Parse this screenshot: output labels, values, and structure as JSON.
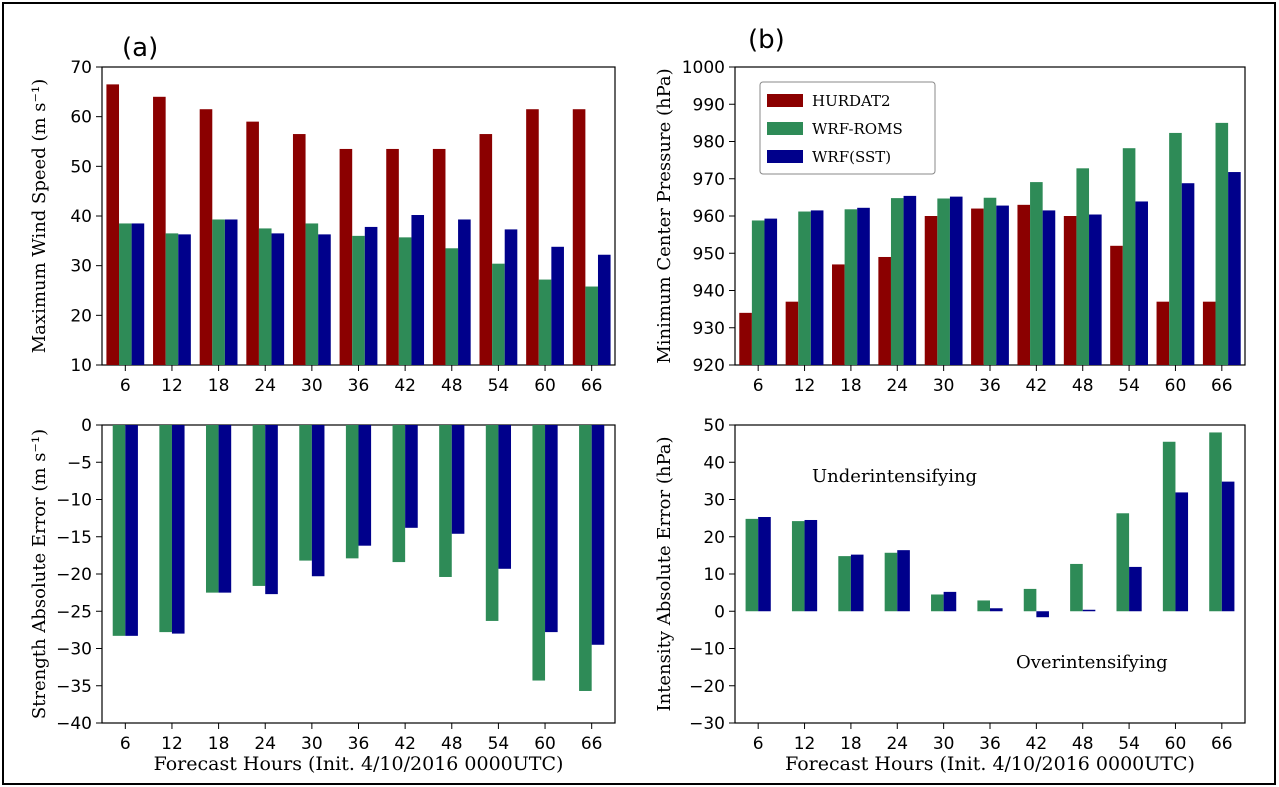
{
  "panel_labels": [
    "(a)",
    "(b)"
  ],
  "legend": [
    {
      "label": "HURDAT2",
      "color": "#8b0000"
    },
    {
      "label": "WRF-ROMS",
      "color": "#2e8b57"
    },
    {
      "label": "WRF(SST)",
      "color": "#00008b"
    }
  ],
  "annotations": {
    "under": "Underintensifying",
    "over": "Overintensifying",
    "color": "#8b0000"
  },
  "chart_data": [
    {
      "type": "bar",
      "panel": "(a) top",
      "categories": [
        "6",
        "12",
        "18",
        "24",
        "30",
        "36",
        "42",
        "48",
        "54",
        "60",
        "66"
      ],
      "ylabel": "Maximum Wind Speed (m s⁻¹)",
      "xlabel": "",
      "ylim": [
        10,
        70
      ],
      "yticks": [
        10,
        20,
        30,
        40,
        50,
        60,
        70
      ],
      "series": [
        {
          "name": "HURDAT2",
          "color": "#8b0000",
          "values": [
            66.5,
            64,
            61.5,
            59,
            56.5,
            53.5,
            53.5,
            53.5,
            56.5,
            61.5,
            61.5
          ]
        },
        {
          "name": "WRF-ROMS",
          "color": "#2e8b57",
          "values": [
            38.5,
            36.5,
            39.3,
            37.5,
            38.5,
            36,
            35.7,
            33.5,
            30.4,
            27.2,
            25.8
          ]
        },
        {
          "name": "WRF(SST)",
          "color": "#00008b",
          "values": [
            38.5,
            36.3,
            39.3,
            36.5,
            36.3,
            37.8,
            40.2,
            39.3,
            37.3,
            33.8,
            32.2
          ]
        }
      ]
    },
    {
      "type": "bar",
      "panel": "(b) top",
      "categories": [
        "6",
        "12",
        "18",
        "24",
        "30",
        "36",
        "42",
        "48",
        "54",
        "60",
        "66"
      ],
      "ylabel": "Minimum Center Pressure (hPa)",
      "xlabel": "",
      "ylim": [
        920,
        1000
      ],
      "yticks": [
        920,
        930,
        940,
        950,
        960,
        970,
        980,
        990,
        1000
      ],
      "series": [
        {
          "name": "HURDAT2",
          "color": "#8b0000",
          "values": [
            934,
            937,
            947,
            949,
            960,
            962,
            963,
            960,
            952,
            937,
            937
          ]
        },
        {
          "name": "WRF-ROMS",
          "color": "#2e8b57",
          "values": [
            958.8,
            961.2,
            961.8,
            964.8,
            964.7,
            964.9,
            969.1,
            972.8,
            978.2,
            982.3,
            985
          ]
        },
        {
          "name": "WRF(SST)",
          "color": "#00008b",
          "values": [
            959.3,
            961.5,
            962.2,
            965.4,
            965.2,
            962.8,
            961.5,
            960.4,
            963.9,
            968.8,
            971.8
          ]
        }
      ]
    },
    {
      "type": "bar",
      "panel": "(a) bottom",
      "categories": [
        "6",
        "12",
        "18",
        "24",
        "30",
        "36",
        "42",
        "48",
        "54",
        "60",
        "66"
      ],
      "ylabel": "Strength Absolute Error (m s⁻¹)",
      "xlabel": "Forecast Hours (Init. 4/10/2016 0000UTC)",
      "ylim": [
        -40,
        0
      ],
      "yticks": [
        -40,
        -35,
        -30,
        -25,
        -20,
        -15,
        -10,
        -5,
        0
      ],
      "series": [
        {
          "name": "WRF-ROMS",
          "color": "#2e8b57",
          "values": [
            -28.3,
            -27.8,
            -22.5,
            -21.6,
            -18.2,
            -17.9,
            -18.4,
            -20.4,
            -26.3,
            -34.3,
            -35.7
          ]
        },
        {
          "name": "WRF(SST)",
          "color": "#00008b",
          "values": [
            -28.3,
            -28,
            -22.5,
            -22.7,
            -20.3,
            -16.2,
            -13.8,
            -14.6,
            -19.3,
            -27.8,
            -29.5
          ]
        }
      ]
    },
    {
      "type": "bar",
      "panel": "(b) bottom",
      "categories": [
        "6",
        "12",
        "18",
        "24",
        "30",
        "36",
        "42",
        "48",
        "54",
        "60",
        "66"
      ],
      "ylabel": "Intensity Absolute Error (hPa)",
      "xlabel": "Forecast Hours (Init. 4/10/2016 0000UTC)",
      "ylim": [
        -30,
        50
      ],
      "yticks": [
        -30,
        -20,
        -10,
        0,
        10,
        20,
        30,
        40,
        50
      ],
      "series": [
        {
          "name": "WRF-ROMS",
          "color": "#2e8b57",
          "values": [
            24.8,
            24.2,
            14.8,
            15.7,
            4.5,
            2.9,
            6,
            12.7,
            26.3,
            45.5,
            48
          ]
        },
        {
          "name": "WRF(SST)",
          "color": "#00008b",
          "values": [
            25.3,
            24.5,
            15.2,
            16.4,
            5.2,
            0.8,
            -1.6,
            0.4,
            11.9,
            31.9,
            34.8
          ]
        }
      ]
    }
  ]
}
